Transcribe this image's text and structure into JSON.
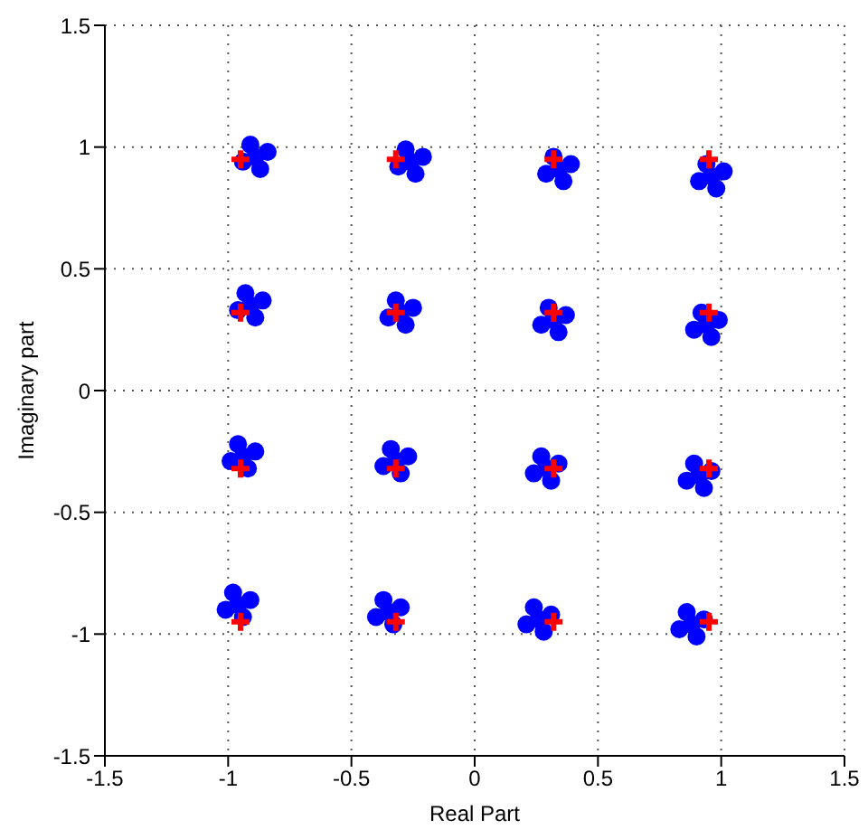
{
  "chart_data": {
    "type": "scatter",
    "xlabel": "Real Part",
    "ylabel": "Imaginary part",
    "xlim": [
      -1.5,
      1.5
    ],
    "ylim": [
      -1.5,
      1.5
    ],
    "xticks": [
      -1.5,
      -1,
      -0.5,
      0,
      0.5,
      1,
      1.5
    ],
    "yticks": [
      -1.5,
      -1,
      -0.5,
      0,
      0.5,
      1,
      1.5
    ],
    "grid": true,
    "series": [
      {
        "color": "#0000ff",
        "marker": "circle",
        "x": [
          -0.89,
          -0.84,
          -0.91,
          -0.94,
          -0.87,
          -0.26,
          -0.21,
          -0.28,
          -0.31,
          -0.24,
          0.34,
          0.39,
          0.32,
          0.29,
          0.36,
          0.96,
          1.01,
          0.94,
          0.91,
          0.98,
          -0.91,
          -0.86,
          -0.93,
          -0.96,
          -0.89,
          -0.3,
          -0.25,
          -0.32,
          -0.35,
          -0.28,
          0.32,
          0.37,
          0.3,
          0.27,
          0.34,
          0.94,
          0.99,
          0.92,
          0.89,
          0.96,
          -0.94,
          -0.89,
          -0.96,
          -0.99,
          -0.92,
          -0.32,
          -0.27,
          -0.34,
          -0.37,
          -0.3,
          0.29,
          0.34,
          0.27,
          0.24,
          0.31,
          0.91,
          0.96,
          0.89,
          0.86,
          0.93,
          -0.96,
          -0.91,
          -0.98,
          -1.01,
          -0.94,
          -0.35,
          -0.3,
          -0.37,
          -0.4,
          -0.33,
          0.26,
          0.31,
          0.24,
          0.21,
          0.28,
          0.88,
          0.93,
          0.86,
          0.83,
          0.9
        ],
        "values": [
          0.96,
          0.98,
          1.01,
          0.94,
          0.91,
          0.94,
          0.96,
          0.99,
          0.92,
          0.89,
          0.91,
          0.93,
          0.96,
          0.89,
          0.86,
          0.88,
          0.9,
          0.93,
          0.86,
          0.83,
          0.35,
          0.37,
          0.4,
          0.33,
          0.3,
          0.32,
          0.34,
          0.37,
          0.3,
          0.27,
          0.29,
          0.31,
          0.34,
          0.27,
          0.24,
          0.27,
          0.29,
          0.32,
          0.25,
          0.22,
          -0.27,
          -0.25,
          -0.22,
          -0.29,
          -0.32,
          -0.29,
          -0.27,
          -0.24,
          -0.31,
          -0.34,
          -0.32,
          -0.3,
          -0.27,
          -0.34,
          -0.37,
          -0.35,
          -0.33,
          -0.3,
          -0.37,
          -0.4,
          -0.88,
          -0.86,
          -0.83,
          -0.9,
          -0.93,
          -0.91,
          -0.89,
          -0.86,
          -0.93,
          -0.96,
          -0.94,
          -0.92,
          -0.89,
          -0.96,
          -0.99,
          -0.96,
          -0.94,
          -0.91,
          -0.98,
          -1.01
        ]
      },
      {
        "color": "#ff0000",
        "marker": "cross",
        "x": [
          -0.95,
          -0.32,
          0.32,
          0.95,
          -0.95,
          -0.32,
          0.32,
          0.95,
          -0.95,
          -0.32,
          0.32,
          0.95,
          -0.95,
          -0.32,
          0.32,
          0.95
        ],
        "values": [
          0.95,
          0.95,
          0.95,
          0.95,
          0.32,
          0.32,
          0.32,
          0.32,
          -0.32,
          -0.32,
          -0.32,
          -0.32,
          -0.95,
          -0.95,
          -0.95,
          -0.95
        ]
      }
    ]
  }
}
